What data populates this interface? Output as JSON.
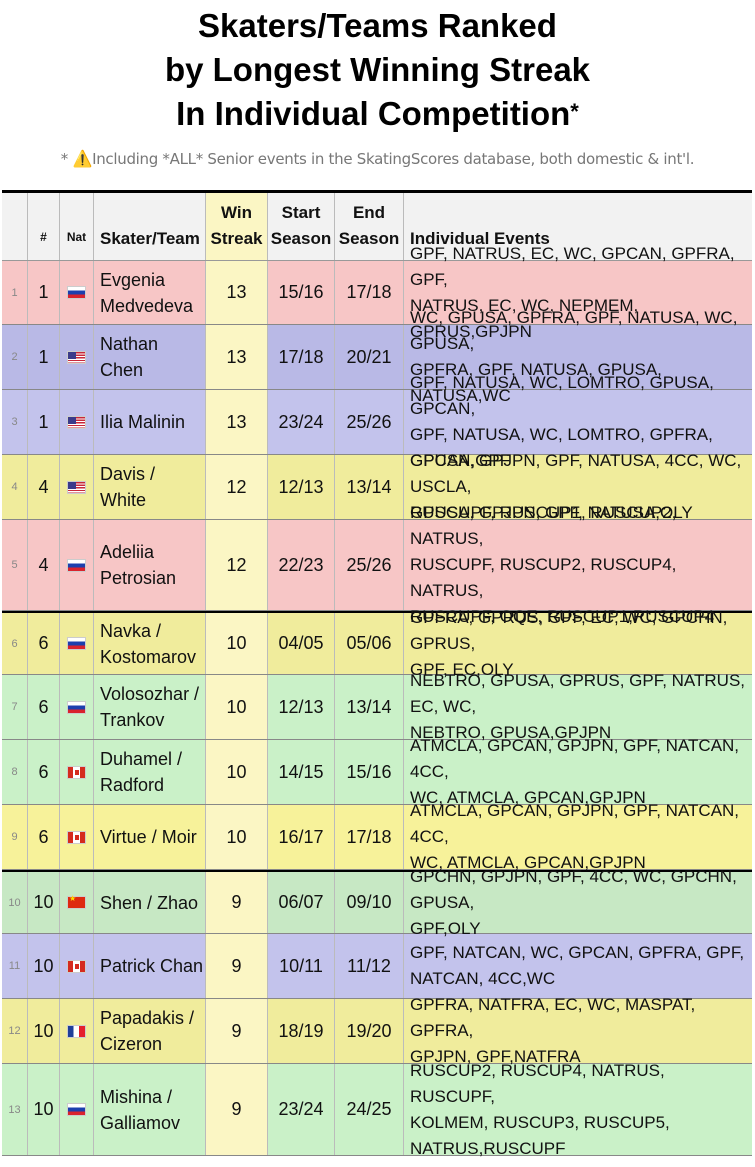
{
  "title": {
    "line1": "Skaters/Teams Ranked",
    "line2": "by Longest Winning Streak",
    "line3": "In Individual Competition",
    "star": "*"
  },
  "subtitle": {
    "prefix": "* ",
    "warning_icon": "⚠️",
    "text": "Including *ALL* Senior events in the SkatingScores database, both domestic & int'l."
  },
  "headers": {
    "rank": "#",
    "nat": "Nat",
    "name": "Skater/Team",
    "streak1": "Win",
    "streak2": "Streak",
    "start1": "Start",
    "start2": "Season",
    "end1": "End",
    "end2": "Season",
    "events": "Individual Events"
  },
  "colors": {
    "red": "#f7c6c6",
    "purple": "#c3c3ec",
    "yellow": "#f3ee9f",
    "green": "#caf1c8",
    "streak": "#fbf6c4"
  },
  "rows": [
    {
      "idx": "1",
      "rank": "1",
      "nat": "rus",
      "name_l1": "Evgenia",
      "name_l2": "Medvedeva",
      "streak": "13",
      "start": "15/16",
      "end": "17/18",
      "ev1": "GPF, NATRUS, EC, WC, GPCAN, GPFRA, GPF,",
      "ev2": "NATRUS, EC, WC, NEPMEM, GPRUS,GPJPN",
      "ev3": "",
      "color": "#f7c6c6",
      "h": 64,
      "thick": false
    },
    {
      "idx": "2",
      "rank": "1",
      "nat": "usa",
      "name_l1": "Nathan Chen",
      "name_l2": "",
      "streak": "13",
      "start": "17/18",
      "end": "20/21",
      "ev1": "WC, GPUSA, GPFRA, GPF, NATUSA, WC, GPUSA,",
      "ev2": "GPFRA, GPF, NATUSA, GPUSA, NATUSA,WC",
      "ev3": "",
      "color": "#b9b9e6",
      "h": 65,
      "thick": false
    },
    {
      "idx": "3",
      "rank": "1",
      "nat": "usa",
      "name_l1": "Ilia Malinin",
      "name_l2": "",
      "streak": "13",
      "start": "23/24",
      "end": "25/26",
      "ev1": "GPF, NATUSA, WC, LOMTRO, GPUSA, GPCAN,",
      "ev2": "GPF, NATUSA, WC, LOMTRO, GPFRA, GPCAN,GPF",
      "ev3": "",
      "color": "#c3c3ec",
      "h": 65,
      "thick": false
    },
    {
      "idx": "4",
      "rank": "4",
      "nat": "usa",
      "name_l1": "Davis / White",
      "name_l2": "",
      "streak": "12",
      "start": "12/13",
      "end": "13/14",
      "ev1": "GPUSA, GPJPN, GPF, NATUSA, 4CC, WC, USCLA,",
      "ev2": "GPUSA, GPJPN, GPF, NATUSA,OLY",
      "ev3": "",
      "color": "#f0ec9c",
      "h": 65,
      "thick": false
    },
    {
      "idx": "5",
      "rank": "4",
      "nat": "rus",
      "name_l1": "Adeliia",
      "name_l2": "Petrosian",
      "streak": "12",
      "start": "22/23",
      "end": "25/26",
      "ev1": "RUSCUPF, RUSCUP1, RUSCUP2, NATRUS,",
      "ev2": "RUSCUPF, RUSCUP2, RUSCUP4, NATRUS,",
      "ev3": "RUSCUPF, OQE, RUSCUP1,RUSCUP4",
      "color": "#f7c6c6",
      "h": 91,
      "thick": false
    },
    {
      "idx": "6",
      "rank": "6",
      "nat": "rus",
      "name_l1": "Navka /",
      "name_l2": "Kostomarov",
      "streak": "10",
      "start": "04/05",
      "end": "05/06",
      "ev1": "GPFRA, GPRUS, GPF, EC, WC, GPCHN, GPRUS,",
      "ev2": "GPF, EC,OLY",
      "ev3": "",
      "color": "#f0ec9c",
      "h": 64,
      "thick": true
    },
    {
      "idx": "7",
      "rank": "6",
      "nat": "rus",
      "name_l1": "Volosozhar /",
      "name_l2": "Trankov",
      "streak": "10",
      "start": "12/13",
      "end": "13/14",
      "ev1": "NEBTRO, GPUSA, GPRUS, GPF, NATRUS, EC, WC,",
      "ev2": "NEBTRO, GPUSA,GPJPN",
      "ev3": "",
      "color": "#caf1c8",
      "h": 65,
      "thick": false
    },
    {
      "idx": "8",
      "rank": "6",
      "nat": "can",
      "name_l1": "Duhamel /",
      "name_l2": "Radford",
      "streak": "10",
      "start": "14/15",
      "end": "15/16",
      "ev1": "ATMCLA, GPCAN, GPJPN, GPF, NATCAN, 4CC,",
      "ev2": "WC, ATMCLA, GPCAN,GPJPN",
      "ev3": "",
      "color": "#caf1c8",
      "h": 65,
      "thick": false
    },
    {
      "idx": "9",
      "rank": "6",
      "nat": "can",
      "name_l1": "Virtue / Moir",
      "name_l2": "",
      "streak": "10",
      "start": "16/17",
      "end": "17/18",
      "ev1": "ATMCLA, GPCAN, GPJPN, GPF, NATCAN, 4CC,",
      "ev2": "WC, ATMCLA, GPCAN,GPJPN",
      "ev3": "",
      "color": "#f7f29a",
      "h": 65,
      "thick": false
    },
    {
      "idx": "10",
      "rank": "10",
      "nat": "chn",
      "name_l1": "Shen / Zhao",
      "name_l2": "",
      "streak": "9",
      "start": "06/07",
      "end": "09/10",
      "ev1": "GPCHN, GPJPN, GPF, 4CC, WC, GPCHN, GPUSA,",
      "ev2": "GPF,OLY",
      "ev3": "",
      "color": "#c7e8c4",
      "h": 64,
      "thick": true
    },
    {
      "idx": "11",
      "rank": "10",
      "nat": "can",
      "name_l1": "Patrick Chan",
      "name_l2": "",
      "streak": "9",
      "start": "10/11",
      "end": "11/12",
      "ev1": "GPF, NATCAN, WC, GPCAN, GPFRA, GPF,",
      "ev2": "NATCAN, 4CC,WC",
      "ev3": "",
      "color": "#c3c3ec",
      "h": 65,
      "thick": false
    },
    {
      "idx": "12",
      "rank": "10",
      "nat": "fra",
      "name_l1": "Papadakis /",
      "name_l2": "Cizeron",
      "streak": "9",
      "start": "18/19",
      "end": "19/20",
      "ev1": "GPFRA, NATFRA, EC, WC, MASPAT, GPFRA,",
      "ev2": "GPJPN, GPF,NATFRA",
      "ev3": "",
      "color": "#f0ec9c",
      "h": 65,
      "thick": false
    },
    {
      "idx": "13",
      "rank": "10",
      "nat": "rus",
      "name_l1": "Mishina /",
      "name_l2": "Galliamov",
      "streak": "9",
      "start": "23/24",
      "end": "24/25",
      "ev1": "RUSCUP2, RUSCUP4, NATRUS, RUSCUPF,",
      "ev2": "KOLMEM, RUSCUP3, RUSCUP5,",
      "ev3": "NATRUS,RUSCUPF",
      "color": "#caf1c8",
      "h": 92,
      "thick": false
    }
  ]
}
